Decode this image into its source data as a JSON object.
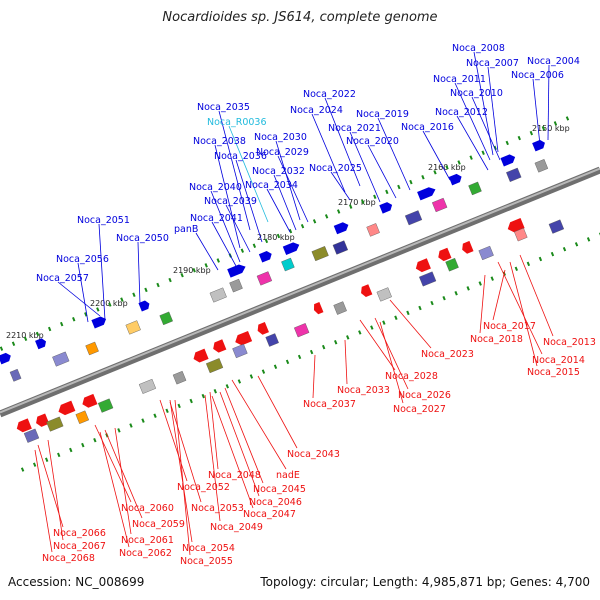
{
  "title": "Nocardioides sp. JS614, complete genome",
  "accession": "Accession: NC_008699",
  "summary": "Topology: circular; Length: 4,985,871 bp; Genes: 4,700",
  "colors": {
    "forward_gene": "#0000dd",
    "reverse_gene": "#ee1111",
    "rna_gene": "#22bbdd",
    "backbone": "#888888",
    "tick": "#1a8a1a"
  },
  "ticks": [
    "2150 kbp",
    "2160 kbp",
    "2170 kbp",
    "2180 kbp",
    "2190 kbp",
    "2200 kbp",
    "2210 kbp"
  ],
  "forward_labels": [
    "Noca_2008",
    "Noca_2007",
    "Noca_2004",
    "Noca_2006",
    "Noca_2011",
    "Noca_2010",
    "Noca_2012",
    "Noca_2016",
    "Noca_2035",
    "Noca_R0036",
    "Noca_2022",
    "Noca_2024",
    "Noca_2019",
    "Noca_2021",
    "Noca_2020",
    "Noca_2038",
    "Noca_2030",
    "Noca_2036",
    "Noca_2029",
    "Noca_2025",
    "Noca_2032",
    "Noca_2040",
    "Noca_2034",
    "Noca_2039",
    "Noca_2041",
    "Noca_2051",
    "panB",
    "Noca_2050",
    "Noca_2056",
    "Noca_2057"
  ],
  "reverse_labels": [
    "Noca_2017",
    "Noca_2018",
    "Noca_2013",
    "Noca_2014",
    "Noca_2015",
    "Noca_2023",
    "Noca_2028",
    "Noca_2033",
    "Noca_2026",
    "Noca_2027",
    "Noca_2037",
    "Noca_2043",
    "Noca_2048",
    "nadE",
    "Noca_2052",
    "Noca_2045",
    "Noca_2046",
    "Noca_2053",
    "Noca_2047",
    "Noca_2060",
    "Noca_2049",
    "Noca_2059",
    "Noca_2066",
    "Noca_2061",
    "Noca_2067",
    "Noca_2054",
    "Noca_2062",
    "Noca_2068",
    "Noca_2055"
  ]
}
